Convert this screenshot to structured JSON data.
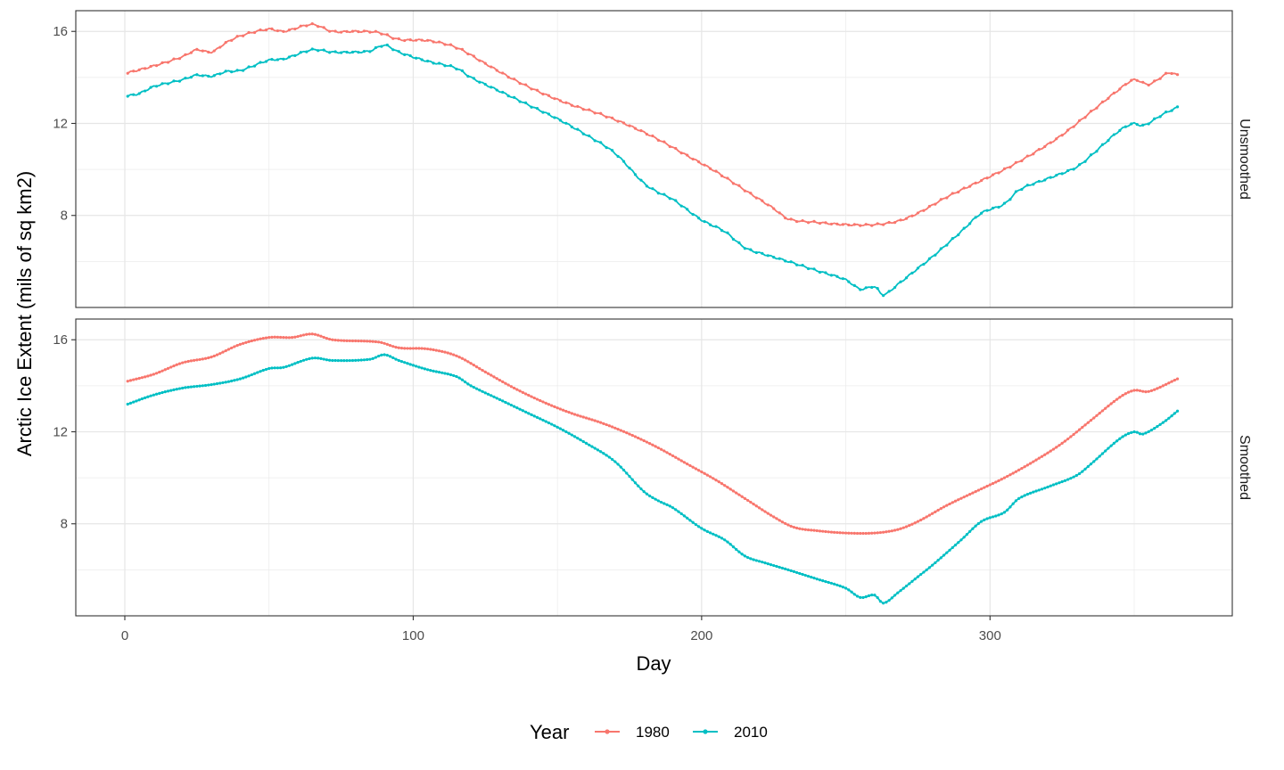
{
  "chart_data": {
    "type": "line",
    "xlabel": "Day",
    "ylabel": "Arctic Ice Extent (mils of sq km2)",
    "xlim": [
      -17,
      384
    ],
    "x_ticks": [
      0,
      100,
      200,
      300
    ],
    "x_tick_labels": [
      "0",
      "100",
      "200",
      "300"
    ],
    "y_ticks": [
      8,
      12,
      16
    ],
    "y_tick_labels": [
      "8",
      "12",
      "16"
    ],
    "grid": true,
    "legend": {
      "title": "Year",
      "position": "bottom"
    },
    "series_colors": {
      "1980": "#F8766D",
      "2010": "#00BFC4"
    },
    "panels": [
      {
        "strip_label": "Unsmoothed",
        "ylim": [
          4.0,
          16.9
        ],
        "series": [
          {
            "name": "1980",
            "knots": [
              [
                1,
                14.2
              ],
              [
                10,
                14.5
              ],
              [
                20,
                14.9
              ],
              [
                25,
                15.2
              ],
              [
                30,
                15.1
              ],
              [
                35,
                15.5
              ],
              [
                40,
                15.8
              ],
              [
                50,
                16.1
              ],
              [
                55,
                16.0
              ],
              [
                65,
                16.3
              ],
              [
                72,
                16.0
              ],
              [
                80,
                16.0
              ],
              [
                88,
                15.95
              ],
              [
                95,
                15.65
              ],
              [
                105,
                15.6
              ],
              [
                115,
                15.3
              ],
              [
                125,
                14.6
              ],
              [
                135,
                13.9
              ],
              [
                145,
                13.3
              ],
              [
                155,
                12.8
              ],
              [
                165,
                12.4
              ],
              [
                175,
                11.9
              ],
              [
                185,
                11.3
              ],
              [
                195,
                10.6
              ],
              [
                205,
                9.9
              ],
              [
                215,
                9.1
              ],
              [
                225,
                8.3
              ],
              [
                230,
                7.85
              ],
              [
                240,
                7.7
              ],
              [
                250,
                7.6
              ],
              [
                260,
                7.6
              ],
              [
                268,
                7.75
              ],
              [
                275,
                8.1
              ],
              [
                285,
                8.8
              ],
              [
                295,
                9.4
              ],
              [
                305,
                10.0
              ],
              [
                315,
                10.7
              ],
              [
                325,
                11.5
              ],
              [
                335,
                12.5
              ],
              [
                345,
                13.5
              ],
              [
                350,
                13.9
              ],
              [
                355,
                13.7
              ],
              [
                362,
                14.2
              ],
              [
                365,
                14.1
              ]
            ]
          },
          {
            "name": "2010",
            "knots": [
              [
                1,
                13.2
              ],
              [
                5,
                13.3
              ],
              [
                10,
                13.6
              ],
              [
                20,
                13.9
              ],
              [
                25,
                14.1
              ],
              [
                30,
                14.05
              ],
              [
                35,
                14.25
              ],
              [
                40,
                14.3
              ],
              [
                50,
                14.75
              ],
              [
                55,
                14.8
              ],
              [
                65,
                15.2
              ],
              [
                72,
                15.1
              ],
              [
                80,
                15.1
              ],
              [
                85,
                15.15
              ],
              [
                90,
                15.4
              ],
              [
                95,
                15.1
              ],
              [
                105,
                14.7
              ],
              [
                115,
                14.4
              ],
              [
                120,
                14.0
              ],
              [
                130,
                13.4
              ],
              [
                140,
                12.8
              ],
              [
                150,
                12.2
              ],
              [
                160,
                11.5
              ],
              [
                170,
                10.7
              ],
              [
                180,
                9.4
              ],
              [
                185,
                9.0
              ],
              [
                190,
                8.7
              ],
              [
                200,
                7.8
              ],
              [
                208,
                7.3
              ],
              [
                215,
                6.6
              ],
              [
                222,
                6.3
              ],
              [
                230,
                6.0
              ],
              [
                240,
                5.6
              ],
              [
                250,
                5.2
              ],
              [
                255,
                4.8
              ],
              [
                260,
                4.9
              ],
              [
                263,
                4.55
              ],
              [
                268,
                5.0
              ],
              [
                275,
                5.7
              ],
              [
                280,
                6.2
              ],
              [
                290,
                7.3
              ],
              [
                297,
                8.1
              ],
              [
                305,
                8.5
              ],
              [
                310,
                9.1
              ],
              [
                320,
                9.6
              ],
              [
                330,
                10.1
              ],
              [
                335,
                10.6
              ],
              [
                345,
                11.7
              ],
              [
                350,
                12.0
              ],
              [
                353,
                11.9
              ],
              [
                360,
                12.4
              ],
              [
                365,
                12.7
              ]
            ]
          }
        ]
      },
      {
        "strip_label": "Smoothed",
        "ylim": [
          4.0,
          16.9
        ],
        "series": [
          {
            "name": "1980",
            "knots": [
              [
                1,
                14.2
              ],
              [
                10,
                14.5
              ],
              [
                20,
                15.0
              ],
              [
                30,
                15.25
              ],
              [
                40,
                15.8
              ],
              [
                50,
                16.1
              ],
              [
                58,
                16.1
              ],
              [
                65,
                16.25
              ],
              [
                72,
                16.0
              ],
              [
                88,
                15.9
              ],
              [
                95,
                15.65
              ],
              [
                105,
                15.6
              ],
              [
                115,
                15.3
              ],
              [
                125,
                14.6
              ],
              [
                135,
                13.9
              ],
              [
                145,
                13.3
              ],
              [
                155,
                12.8
              ],
              [
                165,
                12.4
              ],
              [
                175,
                11.9
              ],
              [
                185,
                11.3
              ],
              [
                195,
                10.6
              ],
              [
                205,
                9.9
              ],
              [
                215,
                9.1
              ],
              [
                225,
                8.3
              ],
              [
                232,
                7.85
              ],
              [
                240,
                7.7
              ],
              [
                250,
                7.6
              ],
              [
                260,
                7.6
              ],
              [
                268,
                7.75
              ],
              [
                275,
                8.1
              ],
              [
                285,
                8.8
              ],
              [
                295,
                9.4
              ],
              [
                305,
                10.0
              ],
              [
                315,
                10.7
              ],
              [
                325,
                11.5
              ],
              [
                335,
                12.5
              ],
              [
                345,
                13.5
              ],
              [
                350,
                13.8
              ],
              [
                355,
                13.75
              ],
              [
                365,
                14.3
              ]
            ]
          },
          {
            "name": "2010",
            "knots": [
              [
                1,
                13.2
              ],
              [
                10,
                13.6
              ],
              [
                20,
                13.9
              ],
              [
                30,
                14.05
              ],
              [
                40,
                14.3
              ],
              [
                50,
                14.75
              ],
              [
                55,
                14.8
              ],
              [
                65,
                15.2
              ],
              [
                72,
                15.1
              ],
              [
                85,
                15.15
              ],
              [
                90,
                15.35
              ],
              [
                95,
                15.1
              ],
              [
                105,
                14.7
              ],
              [
                115,
                14.4
              ],
              [
                120,
                14.0
              ],
              [
                130,
                13.4
              ],
              [
                140,
                12.8
              ],
              [
                150,
                12.2
              ],
              [
                160,
                11.5
              ],
              [
                170,
                10.7
              ],
              [
                180,
                9.4
              ],
              [
                185,
                9.0
              ],
              [
                190,
                8.7
              ],
              [
                200,
                7.8
              ],
              [
                208,
                7.3
              ],
              [
                215,
                6.6
              ],
              [
                222,
                6.3
              ],
              [
                230,
                6.0
              ],
              [
                240,
                5.6
              ],
              [
                250,
                5.2
              ],
              [
                255,
                4.8
              ],
              [
                260,
                4.9
              ],
              [
                263,
                4.55
              ],
              [
                268,
                5.0
              ],
              [
                275,
                5.7
              ],
              [
                280,
                6.2
              ],
              [
                290,
                7.3
              ],
              [
                297,
                8.1
              ],
              [
                305,
                8.5
              ],
              [
                310,
                9.1
              ],
              [
                320,
                9.6
              ],
              [
                330,
                10.1
              ],
              [
                335,
                10.6
              ],
              [
                345,
                11.7
              ],
              [
                350,
                12.0
              ],
              [
                353,
                11.9
              ],
              [
                360,
                12.4
              ],
              [
                365,
                12.9
              ]
            ]
          }
        ]
      }
    ]
  }
}
